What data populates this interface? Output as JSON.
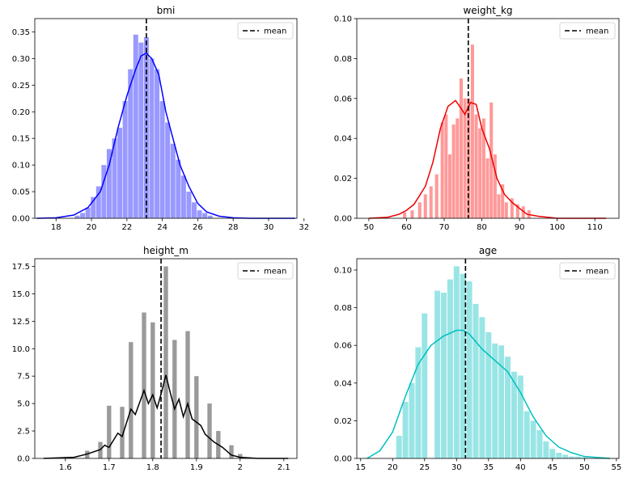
{
  "chart_data": [
    {
      "type": "histogram",
      "title": "bmi",
      "color": "#0000ff",
      "fill": "#9999ff",
      "xlim": [
        16.8,
        31.6
      ],
      "ylim": [
        0,
        0.375
      ],
      "xticks": [
        18,
        20,
        22,
        24,
        26,
        28,
        30,
        32
      ],
      "yticks": [
        0.0,
        0.05,
        0.1,
        0.15,
        0.2,
        0.25,
        0.3,
        0.35
      ],
      "ytick_labels": [
        "0.00",
        "0.05",
        "0.10",
        "0.15",
        "0.20",
        "0.25",
        "0.30",
        "0.35"
      ],
      "mean": 23.1,
      "legend": {
        "label": "mean",
        "placement": "upper right"
      },
      "bins": [
        [
          19.2,
          0.005
        ],
        [
          19.5,
          0.01
        ],
        [
          19.8,
          0.02
        ],
        [
          20.1,
          0.04
        ],
        [
          20.4,
          0.06
        ],
        [
          20.7,
          0.1
        ],
        [
          21.0,
          0.13
        ],
        [
          21.3,
          0.15
        ],
        [
          21.6,
          0.17
        ],
        [
          21.9,
          0.22
        ],
        [
          22.2,
          0.28
        ],
        [
          22.5,
          0.345
        ],
        [
          22.8,
          0.33
        ],
        [
          23.1,
          0.34
        ],
        [
          23.4,
          0.3
        ],
        [
          23.7,
          0.28
        ],
        [
          24.0,
          0.22
        ],
        [
          24.3,
          0.18
        ],
        [
          24.6,
          0.14
        ],
        [
          24.9,
          0.11
        ],
        [
          25.2,
          0.08
        ],
        [
          25.5,
          0.05
        ],
        [
          25.8,
          0.03
        ],
        [
          26.1,
          0.015
        ],
        [
          26.4,
          0.01
        ],
        [
          26.7,
          0.005
        ]
      ],
      "kde": [
        [
          16.9,
          0.0
        ],
        [
          18.0,
          0.001
        ],
        [
          19.0,
          0.006
        ],
        [
          19.8,
          0.02
        ],
        [
          20.5,
          0.05
        ],
        [
          21.0,
          0.1
        ],
        [
          21.5,
          0.17
        ],
        [
          22.0,
          0.23
        ],
        [
          22.5,
          0.28
        ],
        [
          22.8,
          0.305
        ],
        [
          23.1,
          0.31
        ],
        [
          23.4,
          0.3
        ],
        [
          23.8,
          0.27
        ],
        [
          24.2,
          0.2
        ],
        [
          24.6,
          0.15
        ],
        [
          25.0,
          0.1
        ],
        [
          25.5,
          0.06
        ],
        [
          26.0,
          0.028
        ],
        [
          26.5,
          0.012
        ],
        [
          27.2,
          0.004
        ],
        [
          28.0,
          0.001
        ],
        [
          29.0,
          0.0
        ],
        [
          30.0,
          0.0
        ],
        [
          31.5,
          0.0
        ]
      ]
    },
    {
      "type": "histogram",
      "title": "weight_kg",
      "color": "#ee0000",
      "fill": "#ff9999",
      "xlim": [
        46.8,
        116.4
      ],
      "ylim": [
        0,
        0.1
      ],
      "xticks": [
        50,
        60,
        70,
        80,
        90,
        100,
        110
      ],
      "yticks": [
        0.0,
        0.02,
        0.04,
        0.06,
        0.08,
        0.1
      ],
      "ytick_labels": [
        "0.00",
        "0.02",
        "0.04",
        "0.06",
        "0.08",
        "0.10"
      ],
      "mean": 76.4,
      "legend": {
        "label": "mean",
        "placement": "upper right"
      },
      "bins": [
        [
          59.5,
          0.003
        ],
        [
          61.5,
          0.004
        ],
        [
          63.5,
          0.008
        ],
        [
          65.0,
          0.012
        ],
        [
          66.5,
          0.016
        ],
        [
          68.0,
          0.022
        ],
        [
          69.5,
          0.048
        ],
        [
          70.5,
          0.052
        ],
        [
          71.5,
          0.032
        ],
        [
          72.5,
          0.047
        ],
        [
          73.5,
          0.05
        ],
        [
          74.5,
          0.07
        ],
        [
          75.5,
          0.06
        ],
        [
          76.5,
          0.06
        ],
        [
          77.5,
          0.087
        ],
        [
          78.5,
          0.052
        ],
        [
          79.5,
          0.045
        ],
        [
          80.5,
          0.05
        ],
        [
          81.5,
          0.03
        ],
        [
          82.5,
          0.058
        ],
        [
          83.5,
          0.032
        ],
        [
          84.5,
          0.012
        ],
        [
          85.5,
          0.017
        ],
        [
          86.5,
          0.008
        ],
        [
          88.0,
          0.01
        ],
        [
          89.5,
          0.007
        ],
        [
          91.0,
          0.006
        ],
        [
          92.5,
          0.004
        ]
      ],
      "kde": [
        [
          50,
          0.0
        ],
        [
          55,
          0.0005
        ],
        [
          58,
          0.002
        ],
        [
          60,
          0.004
        ],
        [
          62,
          0.007
        ],
        [
          65,
          0.016
        ],
        [
          67,
          0.028
        ],
        [
          69,
          0.045
        ],
        [
          71,
          0.056
        ],
        [
          73,
          0.059
        ],
        [
          74.5,
          0.055
        ],
        [
          75.5,
          0.052
        ],
        [
          77,
          0.058
        ],
        [
          78.5,
          0.057
        ],
        [
          80,
          0.045
        ],
        [
          82,
          0.035
        ],
        [
          84,
          0.02
        ],
        [
          86,
          0.012
        ],
        [
          88,
          0.008
        ],
        [
          90,
          0.005
        ],
        [
          92,
          0.002
        ],
        [
          95,
          0.001
        ],
        [
          100,
          0.0
        ],
        [
          113,
          0.0
        ]
      ]
    },
    {
      "type": "histogram",
      "title": "height_m",
      "color": "#000000",
      "fill": "#9a9a9a",
      "xlim": [
        1.53,
        2.13
      ],
      "ylim": [
        0,
        18.2
      ],
      "xticks": [
        1.6,
        1.7,
        1.8,
        1.9,
        2.0,
        2.1
      ],
      "yticks": [
        0.0,
        2.5,
        5.0,
        7.5,
        10.0,
        12.5,
        15.0,
        17.5
      ],
      "ytick_labels": [
        "0.0",
        "2.5",
        "5.0",
        "7.5",
        "10.0",
        "12.5",
        "15.0",
        "17.5"
      ],
      "mean": 1.819,
      "legend": {
        "label": "mean",
        "placement": "upper right"
      },
      "bins": [
        [
          1.65,
          0.7
        ],
        [
          1.68,
          1.5
        ],
        [
          1.7,
          4.8
        ],
        [
          1.73,
          4.7
        ],
        [
          1.75,
          10.6
        ],
        [
          1.78,
          13.3
        ],
        [
          1.8,
          12.4
        ],
        [
          1.83,
          17.5
        ],
        [
          1.85,
          10.8
        ],
        [
          1.88,
          11.6
        ],
        [
          1.9,
          7.5
        ],
        [
          1.93,
          5.0
        ],
        [
          1.95,
          2.5
        ],
        [
          1.98,
          1.2
        ],
        [
          2.0,
          0.4
        ]
      ],
      "kde": [
        [
          1.55,
          0.0
        ],
        [
          1.62,
          0.1
        ],
        [
          1.65,
          0.4
        ],
        [
          1.68,
          0.8
        ],
        [
          1.69,
          1.2
        ],
        [
          1.7,
          1.0
        ],
        [
          1.72,
          2.3
        ],
        [
          1.73,
          2.0
        ],
        [
          1.75,
          4.5
        ],
        [
          1.76,
          4.0
        ],
        [
          1.78,
          6.2
        ],
        [
          1.79,
          5.0
        ],
        [
          1.8,
          5.8
        ],
        [
          1.81,
          4.6
        ],
        [
          1.82,
          6.0
        ],
        [
          1.83,
          7.6
        ],
        [
          1.84,
          6.0
        ],
        [
          1.85,
          4.5
        ],
        [
          1.86,
          5.4
        ],
        [
          1.87,
          3.8
        ],
        [
          1.88,
          5.0
        ],
        [
          1.89,
          3.6
        ],
        [
          1.91,
          3.0
        ],
        [
          1.92,
          2.2
        ],
        [
          1.94,
          1.5
        ],
        [
          1.96,
          1.0
        ],
        [
          1.98,
          0.3
        ],
        [
          2.0,
          0.1
        ],
        [
          2.04,
          0.0
        ],
        [
          2.11,
          0.0
        ]
      ]
    },
    {
      "type": "histogram",
      "title": "age",
      "color": "#00bfbf",
      "fill": "#99e5e5",
      "xlim": [
        14.4,
        55.4
      ],
      "ylim": [
        0,
        0.106
      ],
      "xticks": [
        15,
        20,
        25,
        30,
        35,
        40,
        45,
        50,
        55
      ],
      "yticks": [
        0.0,
        0.02,
        0.04,
        0.06,
        0.08,
        0.1
      ],
      "ytick_labels": [
        "0.00",
        "0.02",
        "0.04",
        "0.06",
        "0.08",
        "0.10"
      ],
      "mean": 31.4,
      "legend": {
        "label": "mean",
        "placement": "upper right"
      },
      "bins": [
        [
          21,
          0.012
        ],
        [
          22,
          0.03
        ],
        [
          23,
          0.04
        ],
        [
          24,
          0.059
        ],
        [
          25,
          0.077
        ],
        [
          27,
          0.089
        ],
        [
          28,
          0.088
        ],
        [
          29,
          0.095
        ],
        [
          30,
          0.102
        ],
        [
          31,
          0.098
        ],
        [
          32,
          0.094
        ],
        [
          33,
          0.082
        ],
        [
          34,
          0.075
        ],
        [
          35,
          0.067
        ],
        [
          36,
          0.061
        ],
        [
          37,
          0.06
        ],
        [
          38,
          0.054
        ],
        [
          39,
          0.046
        ],
        [
          40,
          0.044
        ],
        [
          41,
          0.025
        ],
        [
          42,
          0.02
        ],
        [
          43,
          0.015
        ],
        [
          44,
          0.009
        ],
        [
          45,
          0.005
        ],
        [
          46,
          0.003
        ],
        [
          47,
          0.002
        ],
        [
          48,
          0.001
        ],
        [
          49,
          0.001
        ],
        [
          50,
          0.0005
        ]
      ],
      "kde": [
        [
          16,
          0.0
        ],
        [
          18,
          0.004
        ],
        [
          20,
          0.014
        ],
        [
          22,
          0.033
        ],
        [
          24,
          0.05
        ],
        [
          26,
          0.06
        ],
        [
          28,
          0.065
        ],
        [
          30,
          0.068
        ],
        [
          31,
          0.068
        ],
        [
          32,
          0.066
        ],
        [
          34,
          0.058
        ],
        [
          36,
          0.052
        ],
        [
          38,
          0.046
        ],
        [
          40,
          0.035
        ],
        [
          42,
          0.022
        ],
        [
          44,
          0.012
        ],
        [
          46,
          0.006
        ],
        [
          48,
          0.003
        ],
        [
          50,
          0.001
        ],
        [
          54,
          0.0
        ]
      ]
    }
  ]
}
